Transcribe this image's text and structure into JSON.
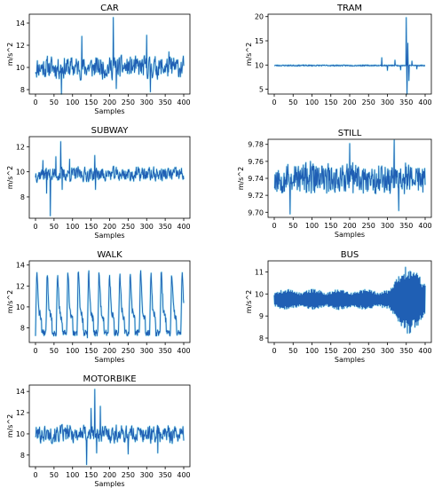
{
  "style": {
    "line_color": "#1f5fb4",
    "glow_color": "#7ee4ee",
    "peak_color": "#b43cc8"
  },
  "chart_data": [
    {
      "id": "car",
      "type": "line",
      "title": "CAR",
      "xlabel": "Samples",
      "ylabel": "m/s^2",
      "xlim": [
        0,
        400
      ],
      "xticks": [
        0,
        50,
        100,
        150,
        200,
        250,
        300,
        350,
        400
      ],
      "ylim": [
        7.6,
        14.8
      ],
      "yticks": [
        8,
        10,
        12,
        14
      ],
      "ytick_labels": [
        "8",
        "10",
        "12",
        "14"
      ],
      "signal": {
        "kind": "noisy",
        "base": 10,
        "amp": 1.3,
        "seed": 11,
        "spikes": [
          [
            70,
            7.6
          ],
          [
            125,
            12.8
          ],
          [
            210,
            14.5
          ],
          [
            218,
            8.1
          ],
          [
            300,
            12.9
          ],
          [
            310,
            7.8
          ],
          [
            360,
            11.4
          ]
        ]
      }
    },
    {
      "id": "tram",
      "type": "line",
      "title": "TRAM",
      "xlabel": "",
      "ylabel": "m/s^2",
      "xlim": [
        0,
        400
      ],
      "xticks": [
        0,
        50,
        100,
        150,
        200,
        250,
        300,
        350,
        400
      ],
      "ylim": [
        4,
        20.5
      ],
      "yticks": [
        5,
        10,
        15,
        20
      ],
      "ytick_labels": [
        "5",
        "10",
        "15",
        "20"
      ],
      "signal": {
        "kind": "flat",
        "base": 9.9,
        "amp": 0.12,
        "seed": 23,
        "spikes": [
          [
            285,
            11.5
          ],
          [
            300,
            8.9
          ],
          [
            320,
            11.0
          ],
          [
            335,
            9.0
          ],
          [
            350,
            19.8
          ],
          [
            352,
            3.6
          ],
          [
            354,
            14.5
          ],
          [
            357,
            6.8
          ],
          [
            365,
            10.8
          ],
          [
            378,
            9.2
          ]
        ]
      }
    },
    {
      "id": "subway",
      "type": "line",
      "title": "SUBWAY",
      "xlabel": "Samples",
      "ylabel": "m/s^2",
      "xlim": [
        0,
        400
      ],
      "xticks": [
        0,
        50,
        100,
        150,
        200,
        250,
        300,
        350,
        400
      ],
      "ylim": [
        6.3,
        12.8
      ],
      "yticks": [
        8,
        10,
        12
      ],
      "ytick_labels": [
        "8",
        "10",
        "12"
      ],
      "signal": {
        "kind": "noisy",
        "base": 9.8,
        "amp": 0.75,
        "seed": 37,
        "spikes": [
          [
            20,
            10.9
          ],
          [
            30,
            8.3
          ],
          [
            40,
            6.5
          ],
          [
            55,
            11.2
          ],
          [
            68,
            12.4
          ],
          [
            72,
            8.6
          ],
          [
            92,
            11.0
          ],
          [
            160,
            11.3
          ],
          [
            162,
            8.6
          ]
        ]
      }
    },
    {
      "id": "still",
      "type": "line",
      "title": "STILL",
      "xlabel": "Samples",
      "ylabel": "m/s^2",
      "xlim": [
        0,
        400
      ],
      "xticks": [
        0,
        50,
        100,
        150,
        200,
        250,
        300,
        350,
        400
      ],
      "ylim": [
        9.694,
        9.786
      ],
      "yticks": [
        9.7,
        9.72,
        9.74,
        9.76,
        9.78
      ],
      "ytick_labels": [
        "9.70",
        "9.72",
        "9.74",
        "9.76",
        "9.78"
      ],
      "signal": {
        "kind": "dense",
        "base": 9.74,
        "amp": 0.016,
        "seed": 53,
        "spikes": [
          [
            42,
            9.698
          ],
          [
            200,
            9.781
          ],
          [
            318,
            9.785
          ],
          [
            330,
            9.702
          ]
        ]
      }
    },
    {
      "id": "walk",
      "type": "line",
      "title": "WALK",
      "xlabel": "Samples",
      "ylabel": "m/s^2",
      "xlim": [
        0,
        400
      ],
      "xticks": [
        0,
        50,
        100,
        150,
        200,
        250,
        300,
        350,
        400
      ],
      "ylim": [
        6.6,
        14.4
      ],
      "yticks": [
        8,
        10,
        12,
        14
      ],
      "ytick_labels": [
        "8",
        "10",
        "12",
        "14"
      ],
      "signal": {
        "kind": "walk",
        "base": 7.4,
        "peak": 13.6,
        "period": 28,
        "seed": 71,
        "spikes": []
      }
    },
    {
      "id": "bus",
      "type": "line",
      "title": "BUS",
      "xlabel": "Samples",
      "ylabel": "m/s^2",
      "xlim": [
        0,
        400
      ],
      "xticks": [
        0,
        50,
        100,
        150,
        200,
        250,
        300,
        350,
        400
      ],
      "ylim": [
        7.8,
        11.5
      ],
      "yticks": [
        8,
        9,
        10,
        11
      ],
      "ytick_labels": [
        "8",
        "9",
        "10",
        "11"
      ],
      "signal": {
        "kind": "bus",
        "base": 9.75,
        "seed": 89,
        "spikes": []
      }
    },
    {
      "id": "motorbike",
      "type": "line",
      "title": "MOTORBIKE",
      "xlabel": "Samples",
      "ylabel": "m/s^2",
      "xlim": [
        0,
        400
      ],
      "xticks": [
        0,
        50,
        100,
        150,
        200,
        250,
        300,
        350,
        400
      ],
      "ylim": [
        6.9,
        14.6
      ],
      "yticks": [
        8,
        10,
        12,
        14
      ],
      "ytick_labels": [
        "8",
        "10",
        "12",
        "14"
      ],
      "signal": {
        "kind": "noisy",
        "base": 10,
        "amp": 1.1,
        "seed": 101,
        "spikes": [
          [
            138,
            7.1
          ],
          [
            150,
            12.4
          ],
          [
            160,
            14.2
          ],
          [
            165,
            8.2
          ],
          [
            175,
            12.6
          ],
          [
            250,
            8.1
          ],
          [
            330,
            8.2
          ]
        ]
      }
    }
  ]
}
